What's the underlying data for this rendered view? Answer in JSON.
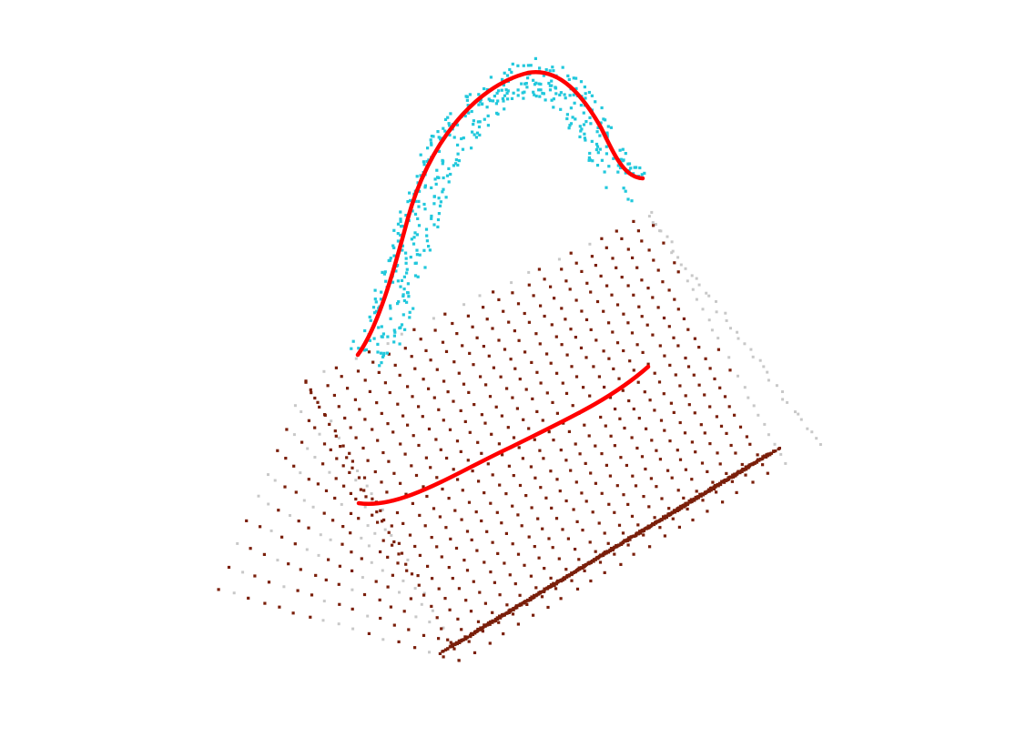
{
  "scene": {
    "background": "#ffffff",
    "colors": {
      "body_points": "#7a1f0a",
      "edge_points": "#c8c8c8",
      "handle_points": "#22c8dc",
      "curves": "#ff0000"
    },
    "point_groups": [
      "body-points",
      "edge-points",
      "handle-points"
    ],
    "curves": [
      "handle-curve",
      "body-curve"
    ]
  }
}
